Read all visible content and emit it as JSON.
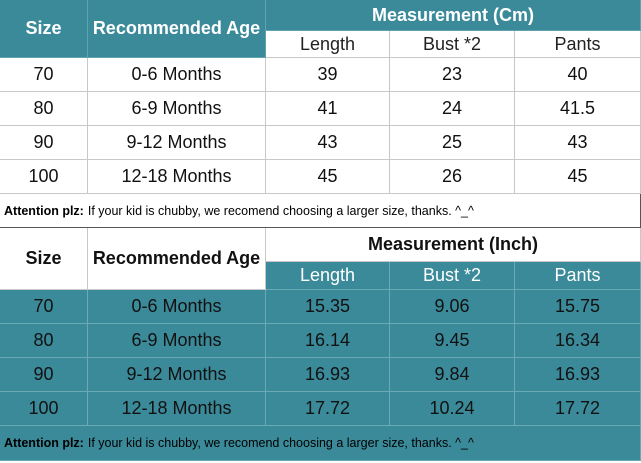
{
  "tables": [
    {
      "header": {
        "size": "Size",
        "age": "Recommended Age",
        "measurement": "Measurement (Cm)",
        "columns": [
          "Length",
          "Bust *2",
          "Pants"
        ]
      },
      "rows": [
        [
          "70",
          "0-6 Months",
          "39",
          "23",
          "40"
        ],
        [
          "80",
          "6-9 Months",
          "41",
          "24",
          "41.5"
        ],
        [
          "90",
          "9-12 Months",
          "43",
          "25",
          "43"
        ],
        [
          "100",
          "12-18 Months",
          "45",
          "26",
          "45"
        ]
      ],
      "note": {
        "label": "Attention plz:",
        "text": "If your kid is chubby, we recomend choosing a larger size, thanks. ^_^"
      }
    },
    {
      "header": {
        "size": "Size",
        "age": "Recommended Age",
        "measurement": "Measurement (Inch)",
        "columns": [
          "Length",
          "Bust *2",
          "Pants"
        ]
      },
      "rows": [
        [
          "70",
          "0-6 Months",
          "15.35",
          "9.06",
          "15.75"
        ],
        [
          "80",
          "6-9 Months",
          "16.14",
          "9.45",
          "16.34"
        ],
        [
          "90",
          "9-12 Months",
          "16.93",
          "9.84",
          "16.93"
        ],
        [
          "100",
          "12-18 Months",
          "17.72",
          "10.24",
          "17.72"
        ]
      ],
      "note": {
        "label": "Attention plz:",
        "text": "If your kid is chubby, we recomend choosing a larger size, thanks. ^_^"
      }
    }
  ]
}
